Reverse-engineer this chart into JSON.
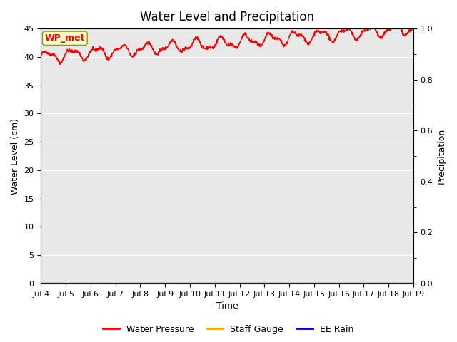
{
  "title": "Water Level and Precipitation",
  "xlabel": "Time",
  "ylabel_left": "Water Level (cm)",
  "ylabel_right": "Precipitation",
  "annotation_text": "WP_met",
  "ylim_left": [
    0,
    45
  ],
  "ylim_right": [
    0,
    1.0
  ],
  "yticks_left": [
    0,
    5,
    10,
    15,
    20,
    25,
    30,
    35,
    40,
    45
  ],
  "yticks_right": [
    0.0,
    0.2,
    0.4,
    0.6,
    0.8,
    1.0
  ],
  "xtick_labels": [
    "Jul 4",
    "Jul 5",
    "Jul 6",
    "Jul 7",
    "Jul 8",
    "Jul 9",
    "Jul 10",
    "Jul 11",
    "Jul 12",
    "Jul 13",
    "Jul 14",
    "Jul 15",
    "Jul 16",
    "Jul 17",
    "Jul 18",
    "Jul 19"
  ],
  "water_pressure_color": "#ff0000",
  "staff_gauge_color": "#ffa500",
  "ee_rain_color": "#0000cc",
  "legend_labels": [
    "Water Pressure",
    "Staff Gauge",
    "EE Rain"
  ],
  "background_color": "#e8e8e8",
  "grid_color": "#ffffff",
  "title_fontsize": 12,
  "axis_label_fontsize": 9,
  "tick_fontsize": 8,
  "legend_fontsize": 9
}
